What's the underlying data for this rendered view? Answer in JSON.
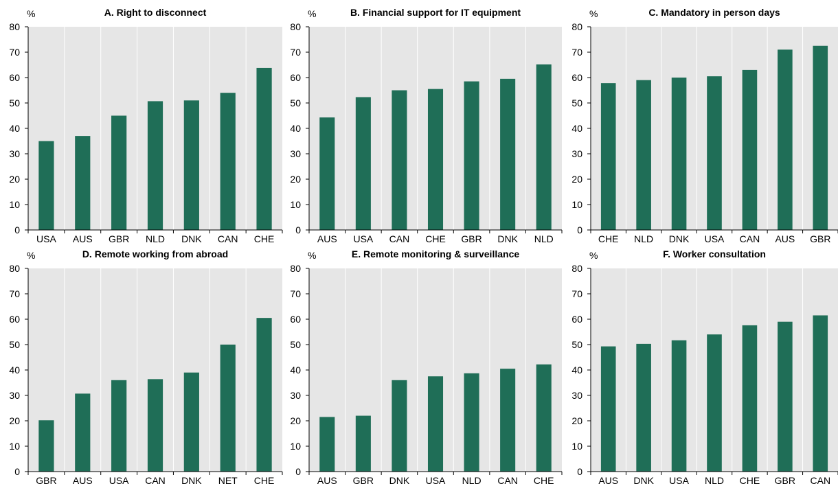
{
  "figure": {
    "colors": {
      "bar": "#1f6e57",
      "plot_bg": "#e6e6e6",
      "grid": "#ffffff",
      "axis": "#000000"
    }
  },
  "chart_data": [
    {
      "type": "bar",
      "title": "A. Right to disconnect",
      "unit": "%",
      "categories": [
        "USA",
        "AUS",
        "GBR",
        "NLD",
        "DNK",
        "CAN",
        "CHE"
      ],
      "values": [
        35,
        37,
        45,
        50.7,
        51,
        54,
        63.8
      ],
      "ylim": [
        0,
        80
      ],
      "yticks": [
        0,
        10,
        20,
        30,
        40,
        50,
        60,
        70,
        80
      ],
      "grid": "vertical"
    },
    {
      "type": "bar",
      "title": "B. Financial support for IT equipment",
      "unit": "%",
      "categories": [
        "AUS",
        "USA",
        "CAN",
        "CHE",
        "GBR",
        "DNK",
        "NLD"
      ],
      "values": [
        44.3,
        52.3,
        55,
        55.5,
        58.5,
        59.5,
        65.2
      ],
      "ylim": [
        0,
        80
      ],
      "yticks": [
        0,
        10,
        20,
        30,
        40,
        50,
        60,
        70,
        80
      ],
      "grid": "vertical"
    },
    {
      "type": "bar",
      "title": "C. Mandatory in person days",
      "unit": "%",
      "categories": [
        "CHE",
        "NLD",
        "DNK",
        "USA",
        "CAN",
        "AUS",
        "GBR"
      ],
      "values": [
        57.8,
        59,
        60,
        60.5,
        63,
        71,
        72.5
      ],
      "ylim": [
        0,
        80
      ],
      "yticks": [
        0,
        10,
        20,
        30,
        40,
        50,
        60,
        70,
        80
      ],
      "grid": "vertical"
    },
    {
      "type": "bar",
      "title": "D. Remote working from abroad",
      "unit": "%",
      "categories": [
        "GBR",
        "AUS",
        "USA",
        "CAN",
        "DNK",
        "NET",
        "CHE"
      ],
      "values": [
        20.2,
        30.7,
        36,
        36.4,
        39,
        50,
        60.5
      ],
      "ylim": [
        0,
        80
      ],
      "yticks": [
        0,
        10,
        20,
        30,
        40,
        50,
        60,
        70,
        80
      ],
      "grid": "vertical"
    },
    {
      "type": "bar",
      "title": "E. Remote monitoring & surveillance",
      "unit": "%",
      "categories": [
        "AUS",
        "GBR",
        "DNK",
        "USA",
        "NLD",
        "CAN",
        "CHE"
      ],
      "values": [
        21.5,
        22,
        36,
        37.5,
        38.7,
        40.5,
        42.2
      ],
      "ylim": [
        0,
        80
      ],
      "yticks": [
        0,
        10,
        20,
        30,
        40,
        50,
        60,
        70,
        80
      ],
      "grid": "vertical"
    },
    {
      "type": "bar",
      "title": "F. Worker consultation",
      "unit": "%",
      "categories": [
        "AUS",
        "DNK",
        "USA",
        "NLD",
        "CHE",
        "GBR",
        "CAN"
      ],
      "values": [
        49.3,
        50.3,
        51.7,
        54,
        57.6,
        59,
        61.5
      ],
      "ylim": [
        0,
        80
      ],
      "yticks": [
        0,
        10,
        20,
        30,
        40,
        50,
        60,
        70,
        80
      ],
      "grid": "vertical"
    }
  ]
}
